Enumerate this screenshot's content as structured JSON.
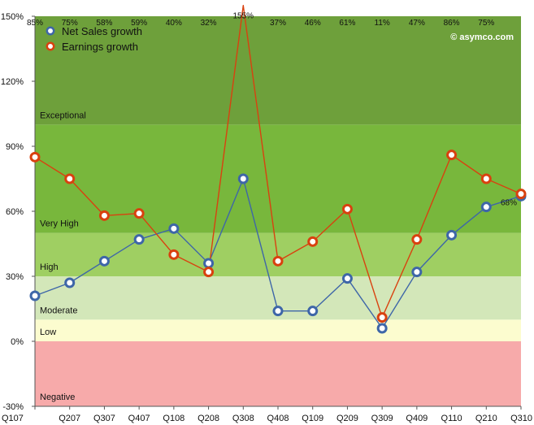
{
  "chart_data": {
    "type": "line",
    "categories": [
      "Q107",
      "Q207",
      "Q307",
      "Q407",
      "Q108",
      "Q208",
      "Q308",
      "Q408",
      "Q109",
      "Q209",
      "Q309",
      "Q409",
      "Q110",
      "Q210",
      "Q310"
    ],
    "ylim": [
      -30,
      150
    ],
    "yticks": [
      "-30%",
      "0%",
      "30%",
      "60%",
      "90%",
      "120%",
      "150%"
    ],
    "ytick_values": [
      -30,
      0,
      30,
      60,
      90,
      120,
      150
    ],
    "grid": false,
    "legend_position": "top-left",
    "credit": "© asymco.com",
    "bands": [
      {
        "label": "Negative",
        "from": -30,
        "to": 0,
        "color": "#f7aaaa"
      },
      {
        "label": "Low",
        "from": 0,
        "to": 10,
        "color": "#fcfccf"
      },
      {
        "label": "Moderate",
        "from": 10,
        "to": 30,
        "color": "#d3e7b9"
      },
      {
        "label": "High",
        "from": 30,
        "to": 50,
        "color": "#9fcf62"
      },
      {
        "label": "Very High",
        "from": 50,
        "to": 100,
        "color": "#78b73c"
      },
      {
        "label": "Exceptional",
        "from": 100,
        "to": 150,
        "color": "#6ea03b"
      }
    ],
    "series": [
      {
        "name": "Net Sales growth",
        "color": "#3e66a8",
        "values": [
          21,
          27,
          37,
          47,
          52,
          36,
          75,
          14,
          14,
          29,
          6,
          32,
          49,
          62,
          67
        ]
      },
      {
        "name": "Earnings growth",
        "color": "#d9410f",
        "values": [
          85,
          75,
          58,
          59,
          40,
          32,
          155,
          37,
          46,
          61,
          11,
          47,
          86,
          75,
          68
        ],
        "labels": [
          "85%",
          "75%",
          "58%",
          "59%",
          "40%",
          "32%",
          "155%",
          "37%",
          "46%",
          "61%",
          "11%",
          "47%",
          "86%",
          "75%",
          "68%"
        ]
      }
    ]
  }
}
